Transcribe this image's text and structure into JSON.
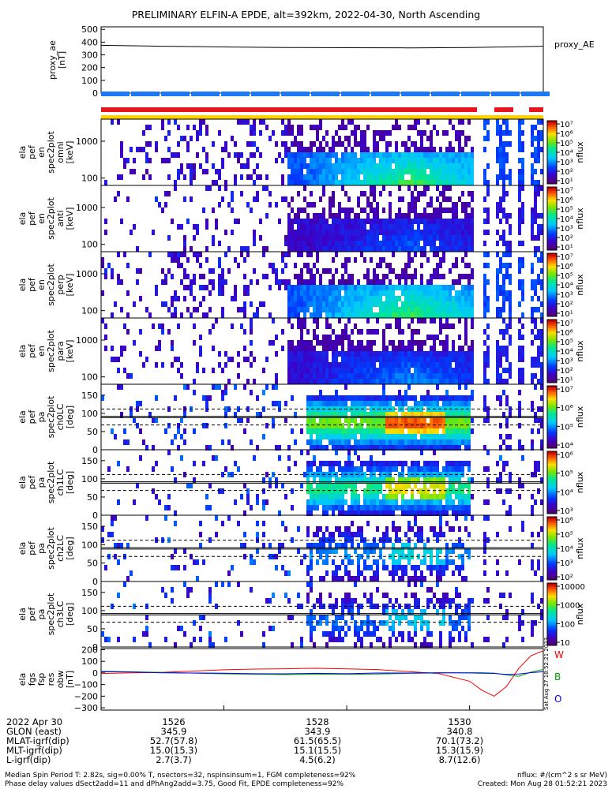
{
  "title": "PRELIMINARY ELFIN-A EPDE, alt=392km, 2022-04-30, North Ascending",
  "colors": {
    "red_bar": "#e8141e",
    "blue_bar": "#1e78f0",
    "yellow_bar": "#ffd200",
    "frame": "#000000"
  },
  "chart_data": [
    {
      "type": "line",
      "panel": "proxy_ae",
      "ylabel": "proxy_ae [nT]",
      "yticks": [
        "500",
        "400",
        "300",
        "200",
        "100",
        "0"
      ],
      "ylim": [
        0,
        520
      ],
      "legend": "proxy_AE",
      "x": [
        1524.0,
        1525.0,
        1526.0,
        1527.0,
        1528.0,
        1529.0,
        1530.0,
        1531.2
      ],
      "values": [
        375,
        368,
        362,
        358,
        356,
        355,
        357,
        368
      ]
    },
    {
      "type": "heatmap",
      "panel": "ela_pef_en_spec2plot_omni",
      "ylabel": "ela pef en spec2plot omni [keV]",
      "yticks": [
        "1000",
        "100"
      ],
      "colorbar_label": "nflux",
      "colorbar_ticks": [
        "10⁷",
        "10⁶",
        "10⁵",
        "10⁴",
        "10³",
        "10²",
        "10¹"
      ]
    },
    {
      "type": "heatmap",
      "panel": "ela_pef_en_spec2plot_anti",
      "ylabel": "ela pef en spec2plot anti [keV]",
      "yticks": [
        "1000",
        "100"
      ],
      "colorbar_label": "nflux",
      "colorbar_ticks": [
        "10⁷",
        "10⁶",
        "10⁵",
        "10⁴",
        "10³",
        "10²",
        "10¹"
      ]
    },
    {
      "type": "heatmap",
      "panel": "ela_pef_en_spec2plot_perp",
      "ylabel": "ela pef en spec2plot perp [keV]",
      "yticks": [
        "1000",
        "100"
      ],
      "colorbar_label": "nflux",
      "colorbar_ticks": [
        "10⁷",
        "10⁶",
        "10⁵",
        "10⁴",
        "10³",
        "10²",
        "10¹"
      ]
    },
    {
      "type": "heatmap",
      "panel": "ela_pef_en_spec2plot_para",
      "ylabel": "ela pef en spec2plot para [keV]",
      "yticks": [
        "1000",
        "100"
      ],
      "colorbar_label": "nflux",
      "colorbar_ticks": [
        "10⁷",
        "10⁶",
        "10⁵",
        "10⁴",
        "10³",
        "10²",
        "10¹"
      ]
    },
    {
      "type": "heatmap",
      "panel": "ela_pef_pa_spec2plot_ch0LC",
      "ylabel": "ela pef pa spec2plot ch0LC [deg]",
      "yticks": [
        "150",
        "100",
        "50",
        "0"
      ],
      "colorbar_label": "nflux",
      "colorbar_ticks": [
        "10⁷",
        "10⁶",
        "10⁵",
        "10⁴"
      ]
    },
    {
      "type": "heatmap",
      "panel": "ela_pef_pa_spec2plot_ch1LC",
      "ylabel": "ela pef pa spec2plot ch1LC [deg]",
      "yticks": [
        "150",
        "100",
        "50",
        "0"
      ],
      "colorbar_label": "nflux",
      "colorbar_ticks": [
        "10⁶",
        "10⁵",
        "10⁴",
        "10³"
      ]
    },
    {
      "type": "heatmap",
      "panel": "ela_pef_pa_spec2plot_ch2LC",
      "ylabel": "ela pef pa spec2plot ch2LC [deg]",
      "yticks": [
        "150",
        "100",
        "50",
        "0"
      ],
      "colorbar_label": "nflux",
      "colorbar_ticks": [
        "10⁶",
        "10⁵",
        "10⁴",
        "10³",
        "10²"
      ]
    },
    {
      "type": "heatmap",
      "panel": "ela_pef_pa_spec2plot_ch3LC",
      "ylabel": "ela pef pa spec2plot ch3LC [deg]",
      "yticks": [
        "150",
        "100",
        "50",
        "0"
      ],
      "colorbar_label": "nflux",
      "colorbar_ticks": [
        "10000",
        "1000",
        "100",
        "10"
      ]
    },
    {
      "type": "line",
      "panel": "ela_fgs_fsp_res_obw",
      "ylabel": "ela fgs fsp res obw [nT]",
      "yticks": [
        "200",
        "100",
        "0",
        "−100",
        "−200",
        "−300"
      ],
      "ylim": [
        -320,
        210
      ],
      "x": [
        1524.0,
        1524.5,
        1525.0,
        1525.5,
        1526.0,
        1526.5,
        1527.0,
        1527.5,
        1528.0,
        1528.5,
        1529.0,
        1529.5,
        1530.0,
        1530.2,
        1530.4,
        1530.6,
        1530.8,
        1531.0,
        1531.2
      ],
      "series": [
        {
          "name": "W",
          "color": "#ff0000",
          "values": [
            -5,
            0,
            8,
            18,
            28,
            35,
            38,
            38,
            35,
            28,
            15,
            -5,
            -70,
            -150,
            -200,
            -120,
            40,
            150,
            190
          ]
        },
        {
          "name": "B",
          "color": "#00a000",
          "values": [
            15,
            8,
            5,
            0,
            -5,
            -10,
            -12,
            -12,
            -10,
            -8,
            -5,
            0,
            5,
            5,
            0,
            -20,
            -30,
            5,
            30
          ]
        },
        {
          "name": "O",
          "color": "#0000ff",
          "values": [
            10,
            5,
            0,
            -2,
            -4,
            -5,
            -5,
            -5,
            -4,
            -3,
            -2,
            0,
            0,
            0,
            -5,
            -15,
            -10,
            0,
            10
          ]
        }
      ]
    }
  ],
  "axis_rows": {
    "labels": [
      "2022 Apr 30",
      "GLON (east)",
      "MLAT-igrf(dip)",
      "MLT-igrf(dip)",
      "L-igrf(dip)"
    ],
    "columns": [
      {
        "tick": "1526",
        "values": [
          "345.9",
          "52.7(57.8)",
          "15.0(15.3)",
          "2.7(3.7)"
        ]
      },
      {
        "tick": "1528",
        "values": [
          "343.9",
          "61.5(65.5)",
          "15.1(15.5)",
          "4.5(6.2)"
        ]
      },
      {
        "tick": "1530",
        "values": [
          "340.8",
          "70.1(73.2)",
          "15.3(15.9)",
          "8.7(12.6)"
        ]
      }
    ]
  },
  "side_stamp": "Sat Aug 27 18:52:21 2023",
  "footer": {
    "line1": "Median Spin Period T: 2.82s, sig=0.00% T, nsectors=32, nspinsinsum=1, FGM completeness=92%",
    "line2": "Phase delay values dSect2add=11 and dPhAng2add=3.75, Good Fit, EPDE completeness=92%",
    "right1": "nflux: #/(cm^2 s sr MeV)",
    "right2": "Created: Mon Aug 28 01:52:21 2023"
  }
}
